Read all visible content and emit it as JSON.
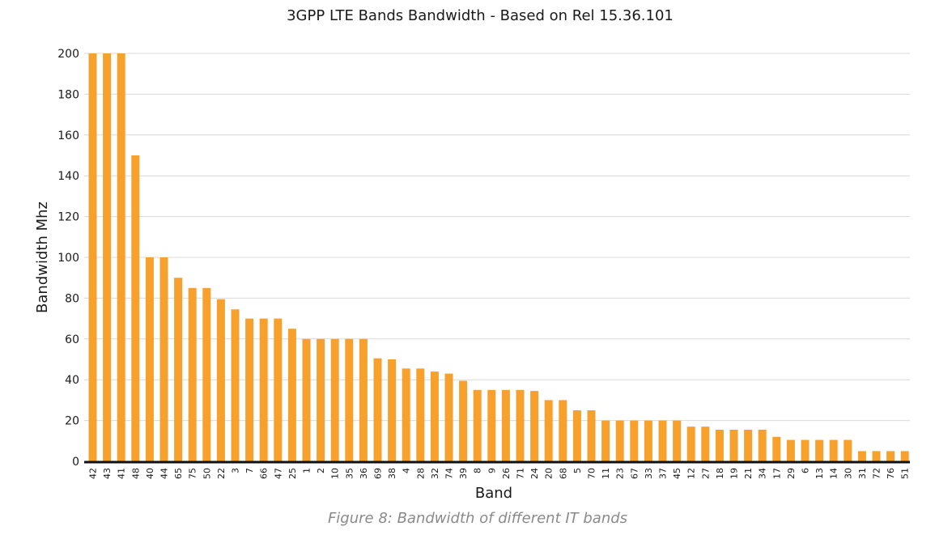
{
  "caption": "Figure 8: Bandwidth of different IT bands",
  "colors": {
    "bar": "#f7a12c",
    "axis_line": "#111111",
    "grid": "#d9d9d9",
    "text": "#1a1a1a",
    "caption": "#8a8a8a"
  },
  "chart_data": {
    "type": "bar",
    "title": "3GPP LTE Bands Bandwidth - Based on Rel 15.36.101",
    "xlabel": "Band",
    "ylabel": "Bandwidth Mhz",
    "ylim": [
      0,
      200
    ],
    "yticks": [
      0,
      20,
      40,
      60,
      80,
      100,
      120,
      140,
      160,
      180,
      200
    ],
    "grid": true,
    "legend": "none",
    "categories": [
      "42",
      "43",
      "41",
      "48",
      "40",
      "44",
      "65",
      "75",
      "50",
      "22",
      "3",
      "7",
      "66",
      "47",
      "25",
      "1",
      "2",
      "10",
      "35",
      "36",
      "69",
      "38",
      "4",
      "28",
      "32",
      "74",
      "39",
      "8",
      "9",
      "26",
      "71",
      "24",
      "20",
      "68",
      "5",
      "70",
      "11",
      "23",
      "67",
      "33",
      "37",
      "45",
      "12",
      "27",
      "18",
      "19",
      "21",
      "34",
      "17",
      "29",
      "6",
      "13",
      "14",
      "30",
      "31",
      "72",
      "76",
      "51"
    ],
    "values": [
      200,
      200,
      200,
      150,
      100,
      100,
      90,
      85,
      85,
      79.5,
      74.5,
      70,
      70,
      70,
      65,
      60,
      60,
      60,
      60,
      60,
      50.5,
      50,
      45.5,
      45.5,
      44,
      43,
      39.5,
      35,
      35,
      35,
      35,
      34.5,
      30,
      30,
      25,
      25,
      20,
      20,
      20,
      20,
      20,
      20,
      17,
      17,
      15.5,
      15.5,
      15.5,
      15.5,
      12,
      10.5,
      10.5,
      10.5,
      10.5,
      10.5,
      5,
      5,
      5,
      5
    ]
  }
}
